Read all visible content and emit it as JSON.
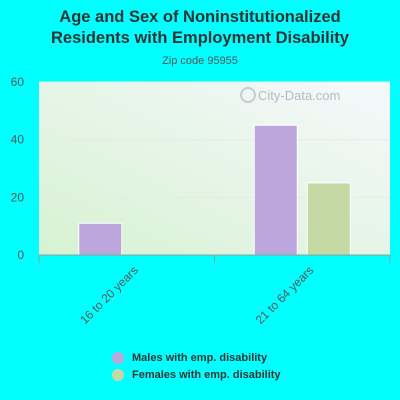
{
  "title_line1": "Age and Sex of Noninstitutionalized",
  "title_line2": "Residents with Employment Disability",
  "subtitle": "Zip code 95955",
  "watermark": "City-Data.com",
  "chart_data": {
    "type": "bar",
    "title": "Age and Sex of Noninstitutionalized Residents with Employment Disability",
    "subtitle": "Zip code 95955",
    "categories": [
      "16 to 20 years",
      "21 to 64 years"
    ],
    "series": [
      {
        "name": "Males with emp. disability",
        "color": "#bca6db",
        "values": [
          11,
          45
        ]
      },
      {
        "name": "Females with emp. disability",
        "color": "#c4d9a4",
        "values": [
          null,
          25
        ]
      }
    ],
    "yticks": [
      0,
      20,
      40,
      60
    ],
    "ylim": [
      0,
      60
    ],
    "grid": true,
    "legend": "bottom"
  }
}
